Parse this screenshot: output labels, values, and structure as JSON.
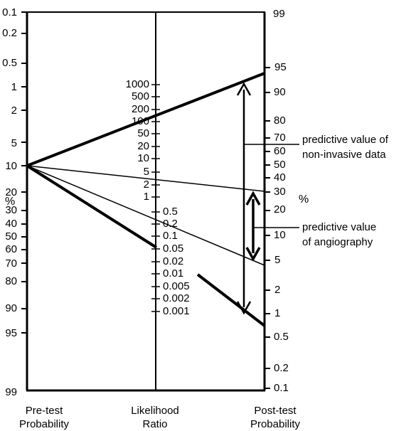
{
  "nomogram": {
    "pretest": {
      "title_line1": "Pre-test",
      "title_line2": "Probability",
      "unit": "%",
      "ticks": [
        "0.1",
        "0.2",
        "0.5",
        "1",
        "2",
        "5",
        "10",
        "20",
        "30",
        "40",
        "50",
        "60",
        "70",
        "80",
        "90",
        "95",
        "99"
      ]
    },
    "likelihood": {
      "title_line1": "Likelihood",
      "title_line2": "Ratio",
      "upper_ticks": [
        "1000",
        "500",
        "200",
        "100",
        "50",
        "20",
        "10",
        "5",
        "2",
        "1"
      ],
      "lower_ticks": [
        "0.5",
        "0.2",
        "0.1",
        "0.05",
        "0.02",
        "0.01",
        "0.005",
        "0.002",
        "0.001"
      ]
    },
    "posttest": {
      "title_line1": "Post-test",
      "title_line2": "Probability",
      "unit": "%",
      "ticks": [
        "99",
        "95",
        "90",
        "80",
        "70",
        "60",
        "50",
        "40",
        "30",
        "20",
        "10",
        "5",
        "2",
        "1",
        "0.5",
        "0.2",
        "0.1"
      ]
    },
    "annotations": {
      "noninvasive_line1": "predictive value of",
      "noninvasive_line2": "non-invasive data",
      "angiography_line1": "predictive value",
      "angiography_line2": "of angiography"
    }
  }
}
